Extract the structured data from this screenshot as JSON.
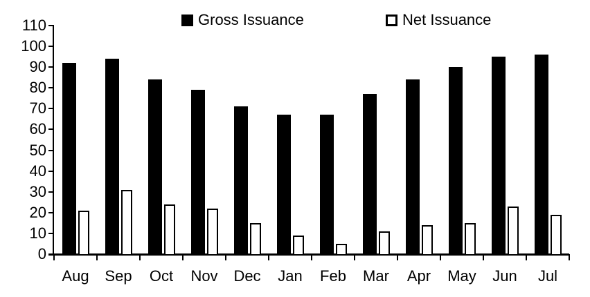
{
  "chart_data": {
    "type": "bar",
    "title": "",
    "categories": [
      "Aug",
      "Sep",
      "Oct",
      "Nov",
      "Dec",
      "Jan",
      "Feb",
      "Mar",
      "Apr",
      "May",
      "Jun",
      "Jul"
    ],
    "series": [
      {
        "name": "Gross Issuance",
        "style": "solid",
        "fill_color": "#000000",
        "border_color": "#000000",
        "values": [
          92,
          94,
          84,
          79,
          71,
          67,
          67,
          77,
          84,
          90,
          95,
          96
        ]
      },
      {
        "name": "Net Issuance",
        "style": "outline",
        "fill_color": "#ffffff",
        "border_color": "#000000",
        "values": [
          21,
          31,
          24,
          22,
          15,
          9,
          5,
          11,
          14,
          15,
          23,
          19
        ]
      }
    ],
    "xlabel": "",
    "ylabel": "",
    "ylim": [
      0,
      110
    ],
    "ytick_step": 10,
    "ytick_labels": [
      "0",
      "10",
      "20",
      "30",
      "40",
      "50",
      "60",
      "70",
      "80",
      "90",
      "100",
      "110"
    ],
    "grid": false,
    "legend_position": "top"
  },
  "legend": {
    "gross_label": "Gross Issuance",
    "net_label": "Net Issuance"
  },
  "colors": {
    "background": "#ffffff",
    "axis": "#000000",
    "gross_bar": "#000000",
    "net_bar_fill": "#ffffff",
    "net_bar_border": "#000000",
    "text": "#000000"
  }
}
